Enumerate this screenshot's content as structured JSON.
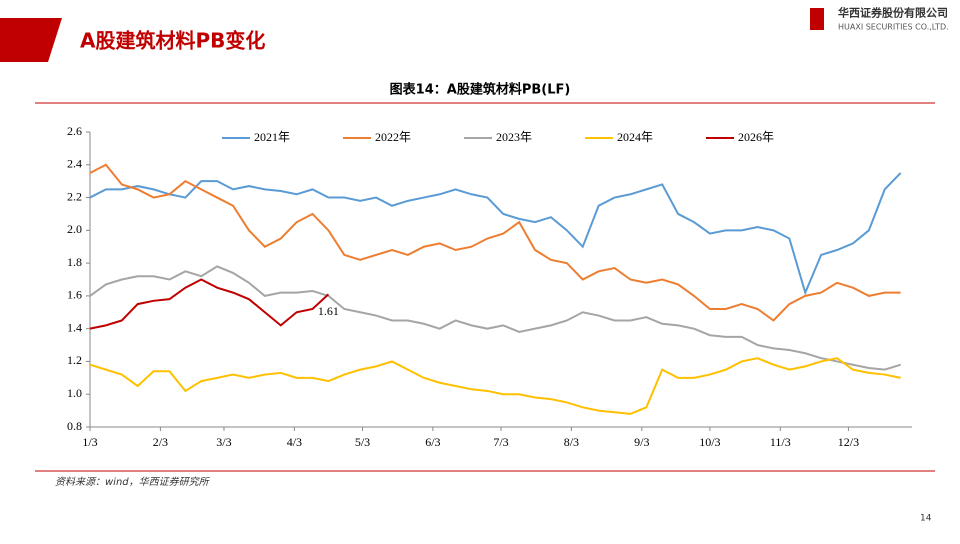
{
  "header": {
    "title": "A股建筑材料PB变化",
    "company": "华西证券股份有限公司",
    "company_en": "HUAXI SECURITIES CO.,LTD."
  },
  "chart_data": {
    "type": "line",
    "title": "图表14：A股建筑材料PB(LF)",
    "x": [
      0,
      7,
      14,
      21,
      28,
      35,
      42,
      49,
      56,
      63,
      70,
      77,
      84,
      91,
      98,
      105,
      112,
      119,
      126,
      133,
      140,
      147,
      154,
      161,
      168,
      175,
      182,
      189,
      196,
      203,
      210,
      217,
      224,
      231,
      238,
      245,
      252,
      259,
      266,
      273,
      280,
      287,
      294,
      301,
      308,
      315,
      322,
      329,
      336,
      343,
      350,
      357
    ],
    "xlim": [
      0,
      362
    ],
    "xticks": [
      {
        "value": 0,
        "label": "1/3"
      },
      {
        "value": 31,
        "label": "2/3"
      },
      {
        "value": 59,
        "label": "3/3"
      },
      {
        "value": 90,
        "label": "4/3"
      },
      {
        "value": 120,
        "label": "5/3"
      },
      {
        "value": 151,
        "label": "6/3"
      },
      {
        "value": 181,
        "label": "7/3"
      },
      {
        "value": 212,
        "label": "8/3"
      },
      {
        "value": 243,
        "label": "9/3"
      },
      {
        "value": 273,
        "label": "10/3"
      },
      {
        "value": 304,
        "label": "11/3"
      },
      {
        "value": 334,
        "label": "12/3"
      }
    ],
    "ylim": [
      0.8,
      2.6
    ],
    "yticks": [
      {
        "value": 0.8,
        "label": "0.8"
      },
      {
        "value": 1.0,
        "label": "1.0"
      },
      {
        "value": 1.2,
        "label": "1.2"
      },
      {
        "value": 1.4,
        "label": "1.4"
      },
      {
        "value": 1.6,
        "label": "1.6"
      },
      {
        "value": 1.8,
        "label": "1.8"
      },
      {
        "value": 2.0,
        "label": "2.0"
      },
      {
        "value": 2.2,
        "label": "2.2"
      },
      {
        "value": 2.4,
        "label": "2.4"
      },
      {
        "value": 2.6,
        "label": "2.6"
      }
    ],
    "series": [
      {
        "name": "2021年",
        "color": "#5b9bd5",
        "values": [
          2.2,
          2.25,
          2.25,
          2.27,
          2.25,
          2.22,
          2.2,
          2.3,
          2.3,
          2.25,
          2.27,
          2.25,
          2.24,
          2.22,
          2.25,
          2.2,
          2.2,
          2.18,
          2.2,
          2.15,
          2.18,
          2.2,
          2.22,
          2.25,
          2.22,
          2.2,
          2.1,
          2.07,
          2.05,
          2.08,
          2.0,
          1.9,
          2.15,
          2.2,
          2.22,
          2.25,
          2.28,
          2.1,
          2.05,
          1.98,
          2.0,
          2.0,
          2.02,
          2.0,
          1.95,
          1.62,
          1.85,
          1.88,
          1.92,
          2.0,
          2.25,
          2.35
        ]
      },
      {
        "name": "2022年",
        "color": "#ed7d31",
        "values": [
          2.35,
          2.4,
          2.28,
          2.25,
          2.2,
          2.22,
          2.3,
          2.25,
          2.2,
          2.15,
          2.0,
          1.9,
          1.95,
          2.05,
          2.1,
          2.0,
          1.85,
          1.82,
          1.85,
          1.88,
          1.85,
          1.9,
          1.92,
          1.88,
          1.9,
          1.95,
          1.98,
          2.05,
          1.88,
          1.82,
          1.8,
          1.7,
          1.75,
          1.77,
          1.7,
          1.68,
          1.7,
          1.67,
          1.6,
          1.52,
          1.52,
          1.55,
          1.52,
          1.45,
          1.55,
          1.6,
          1.62,
          1.68,
          1.65,
          1.6,
          1.62,
          1.62
        ]
      },
      {
        "name": "2023年",
        "color": "#a5a5a5",
        "values": [
          1.6,
          1.67,
          1.7,
          1.72,
          1.72,
          1.7,
          1.75,
          1.72,
          1.78,
          1.74,
          1.68,
          1.6,
          1.62,
          1.62,
          1.63,
          1.6,
          1.52,
          1.5,
          1.48,
          1.45,
          1.45,
          1.43,
          1.4,
          1.45,
          1.42,
          1.4,
          1.42,
          1.38,
          1.4,
          1.42,
          1.45,
          1.5,
          1.48,
          1.45,
          1.45,
          1.47,
          1.43,
          1.42,
          1.4,
          1.36,
          1.35,
          1.35,
          1.3,
          1.28,
          1.27,
          1.25,
          1.22,
          1.2,
          1.18,
          1.16,
          1.15,
          1.18
        ]
      },
      {
        "name": "2024年",
        "color": "#ffc000",
        "values": [
          1.18,
          1.15,
          1.12,
          1.05,
          1.14,
          1.14,
          1.02,
          1.08,
          1.1,
          1.12,
          1.1,
          1.12,
          1.13,
          1.1,
          1.1,
          1.08,
          1.12,
          1.15,
          1.17,
          1.2,
          1.15,
          1.1,
          1.07,
          1.05,
          1.03,
          1.02,
          1.0,
          1.0,
          0.98,
          0.97,
          0.95,
          0.92,
          0.9,
          0.89,
          0.88,
          0.92,
          1.15,
          1.1,
          1.1,
          1.12,
          1.15,
          1.2,
          1.22,
          1.18,
          1.15,
          1.17,
          1.2,
          1.22,
          1.15,
          1.13,
          1.12,
          1.1
        ]
      },
      {
        "name": "2026年",
        "color": "#c00000",
        "values": [
          1.4,
          1.42,
          1.45,
          1.55,
          1.57,
          1.58,
          1.65,
          1.7,
          1.65,
          1.62,
          1.58,
          1.5,
          1.42,
          1.5,
          1.52,
          1.61,
          null,
          null,
          null,
          null,
          null,
          null,
          null,
          null,
          null,
          null,
          null,
          null,
          null,
          null,
          null,
          null,
          null,
          null,
          null,
          null,
          null,
          null,
          null,
          null,
          null,
          null,
          null,
          null,
          null,
          null,
          null,
          null,
          null,
          null,
          null,
          null
        ]
      }
    ],
    "source": "资料来源：wind，华西证券研究所"
  },
  "page_number": "14"
}
